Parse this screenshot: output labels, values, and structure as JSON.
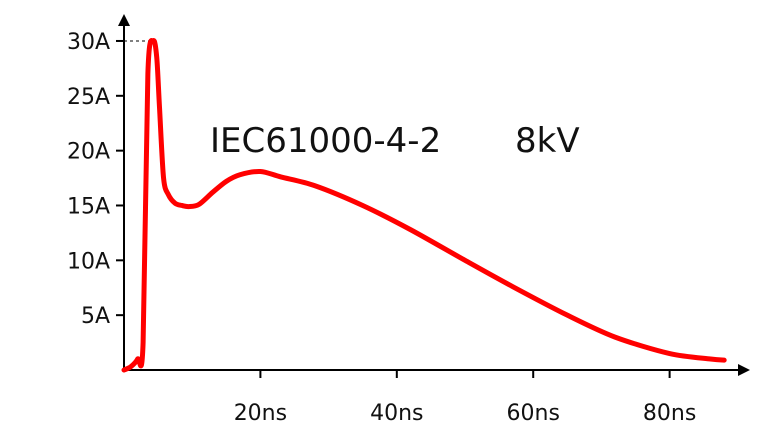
{
  "chart_data": {
    "type": "line",
    "title": "IEC61000-4-2",
    "title_suffix": "8kV",
    "xlabel": "",
    "ylabel": "",
    "x_unit": "ns",
    "y_unit": "A",
    "xlim": [
      0,
      89
    ],
    "ylim": [
      0,
      31
    ],
    "x_ticks": [
      20,
      40,
      60,
      80
    ],
    "x_tick_labels": [
      "20ns",
      "40ns",
      "60ns",
      "80ns"
    ],
    "y_ticks": [
      5,
      10,
      15,
      20,
      25,
      30
    ],
    "y_tick_labels": [
      "5A",
      "10A",
      "15A",
      "20A",
      "25A",
      "30A"
    ],
    "peak_reference": 30,
    "grid": false,
    "series": [
      {
        "name": "IEC61000-4-2 8kV",
        "color": "#ff0000",
        "x": [
          0,
          1,
          2,
          2.8,
          3.5,
          4.3,
          4.8,
          5.2,
          5.8,
          6.5,
          7.5,
          8.5,
          9.5,
          11,
          13,
          15,
          17,
          20,
          23,
          28,
          35,
          42,
          50,
          57,
          65,
          72,
          80,
          86,
          88
        ],
        "values": [
          0,
          0.3,
          1,
          2.5,
          27,
          30,
          28.5,
          24,
          17.5,
          16,
          15.2,
          15,
          14.9,
          15.1,
          16.2,
          17.2,
          17.8,
          18.1,
          17.6,
          16.8,
          15,
          12.8,
          10,
          7.6,
          5,
          3,
          1.5,
          1,
          0.9
        ]
      }
    ]
  }
}
